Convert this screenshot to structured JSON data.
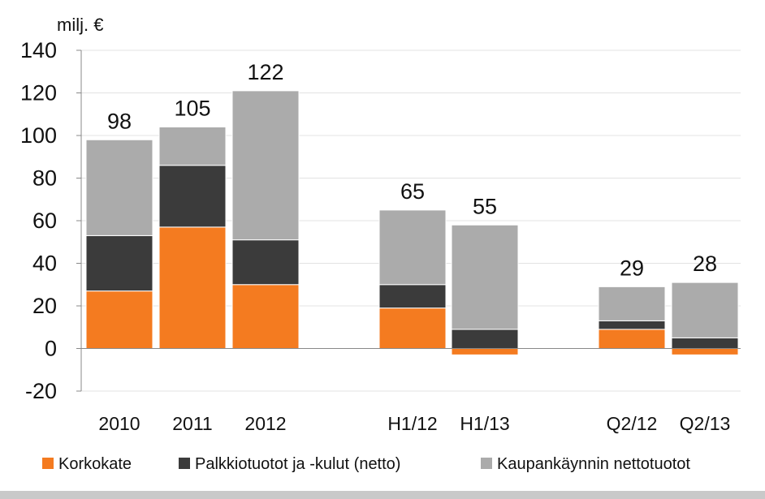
{
  "chart_data": {
    "type": "bar",
    "stacked": true,
    "unit_label": "milj. €",
    "categories": [
      "2010",
      "2011",
      "2012",
      "H1/12",
      "H1/13",
      "Q2/12",
      "Q2/13"
    ],
    "groups": [
      [
        0,
        1,
        2
      ],
      [
        3,
        4
      ],
      [
        5,
        6
      ]
    ],
    "series": [
      {
        "name": "Korkokate",
        "color": "#f47b20",
        "values": [
          27,
          57,
          30,
          19,
          -3,
          9,
          -3
        ]
      },
      {
        "name": "Palkkiotuotot ja -kulut (netto)",
        "color": "#3b3b3b",
        "values": [
          26,
          29,
          21,
          11,
          9,
          4,
          5
        ]
      },
      {
        "name": "Kaupankäynnin nettotuotot",
        "color": "#ababab",
        "values": [
          45,
          18,
          70,
          35,
          49,
          16,
          26
        ]
      }
    ],
    "totals": [
      "98",
      "105",
      "122",
      "65",
      "55",
      "29",
      "28"
    ],
    "ylim": [
      -20,
      140
    ],
    "yticks": [
      -20,
      0,
      20,
      40,
      60,
      80,
      100,
      120,
      140
    ],
    "grid": true,
    "legend_position": "bottom"
  }
}
